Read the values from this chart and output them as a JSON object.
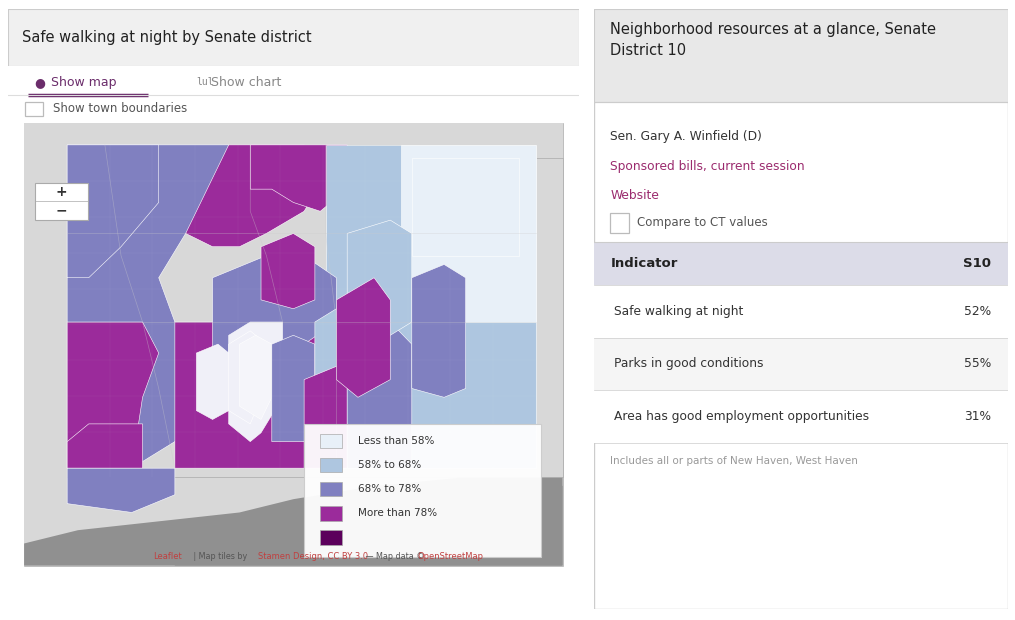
{
  "left_panel": {
    "title": "Safe walking at night by Senate district",
    "tab1": "Show map",
    "tab2": "Show chart",
    "checkbox_label": "Show town boundaries",
    "bg_color": "#f0f0f0",
    "border_color": "#cccccc",
    "tab_underline_color": "#6b2d6b",
    "tab_text_color": "#6b2d6b",
    "legend_items": [
      {
        "label": "Less than 58%",
        "color": "#e8f0f8"
      },
      {
        "label": "58% to 68%",
        "color": "#aec6e0"
      },
      {
        "label": "68% to 78%",
        "color": "#8080c0"
      },
      {
        "label": "More than 78%",
        "color": "#9b2b9b"
      },
      {
        "label": "",
        "color": "#5c005c"
      }
    ],
    "map_bg": "#909090",
    "land_bg": "#d8d8d8",
    "water_color": "#909090"
  },
  "right_panel": {
    "title": "Neighborhood resources at a glance, Senate\nDistrict 10",
    "title_bg": "#e8e8e8",
    "senator": "Sen. Gary A. Winfield (D)",
    "link1": "Sponsored bills, current session",
    "link2": "Website",
    "link_color": "#9b2b6e",
    "checkbox_label": "Compare to CT values",
    "table_header_bg": "#dcdce8",
    "table_header_col1": "Indicator",
    "table_header_col2": "S10",
    "rows": [
      {
        "indicator": "Safe walking at night",
        "value": "52%"
      },
      {
        "indicator": "Parks in good conditions",
        "value": "55%"
      },
      {
        "indicator": "Area has good employment opportunities",
        "value": "31%"
      }
    ],
    "row_bg1": "#ffffff",
    "row_bg2": "#f5f5f5",
    "footer": "Includes all or parts of New Haven, West Haven",
    "footer_color": "#999999",
    "border_color": "#cccccc",
    "bg_color": "#ffffff"
  },
  "figure_bg": "#ffffff"
}
